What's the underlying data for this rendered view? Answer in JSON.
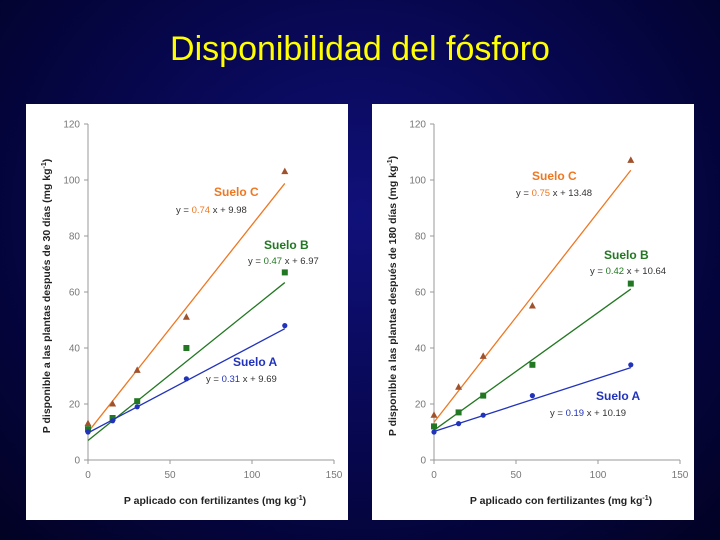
{
  "slide": {
    "title": "Disponibilidad del fósforo"
  },
  "colors": {
    "Suelo A": "#2233bb",
    "Suelo B": "#227722",
    "Suelo C": "#ee7722",
    "marker_C": "#a0522d"
  },
  "chart_data": [
    {
      "type": "scatter",
      "xlabel": "P aplicado con fertilizantes (mg kg-1)",
      "ylabel": "P disponible a las plantas después de 30 días (mg kg-1)",
      "xlim": [
        0,
        150
      ],
      "ylim": [
        0,
        120
      ],
      "xticks": [
        0,
        50,
        100,
        150
      ],
      "yticks": [
        0,
        20,
        40,
        60,
        80,
        100,
        120
      ],
      "series": [
        {
          "name": "Suelo C",
          "equation": "y = 0.74 x + 9.98",
          "slope": "0.74",
          "marker": "triangle",
          "x": [
            0,
            15,
            30,
            60,
            120
          ],
          "y": [
            13,
            20,
            32,
            51,
            103
          ]
        },
        {
          "name": "Suelo B",
          "equation": "y = 0.47 x + 6.97",
          "slope": "0.47",
          "marker": "square",
          "x": [
            0,
            15,
            30,
            60,
            120
          ],
          "y": [
            11,
            15,
            21,
            40,
            67
          ]
        },
        {
          "name": "Suelo A",
          "equation": "y = 0.31 x + 9.69",
          "slope": "0.31",
          "marker": "circle",
          "x": [
            0,
            15,
            30,
            60,
            120
          ],
          "y": [
            10,
            14,
            19,
            29,
            48
          ]
        }
      ]
    },
    {
      "type": "scatter",
      "xlabel": "P aplicado con fertilizantes (mg kg-1)",
      "ylabel": "P disponible a las plantas después de 180 días (mg kg-1)",
      "xlim": [
        0,
        150
      ],
      "ylim": [
        0,
        120
      ],
      "xticks": [
        0,
        50,
        100,
        150
      ],
      "yticks": [
        0,
        20,
        40,
        60,
        80,
        100,
        120
      ],
      "series": [
        {
          "name": "Suelo C",
          "equation": "y = 0.75 x + 13.48",
          "slope": "0.75",
          "marker": "triangle",
          "x": [
            0,
            15,
            30,
            60,
            120
          ],
          "y": [
            16,
            26,
            37,
            55,
            107
          ]
        },
        {
          "name": "Suelo B",
          "equation": "y = 0.42 x + 10.64",
          "slope": "0.42",
          "marker": "square",
          "x": [
            0,
            15,
            30,
            60,
            120
          ],
          "y": [
            12,
            17,
            23,
            34,
            63
          ]
        },
        {
          "name": "Suelo A",
          "equation": "y = 0.19 x + 10.19",
          "slope": "0.19",
          "marker": "circle",
          "x": [
            0,
            15,
            30,
            60,
            120
          ],
          "y": [
            10,
            13,
            16,
            23,
            34
          ]
        }
      ]
    }
  ]
}
